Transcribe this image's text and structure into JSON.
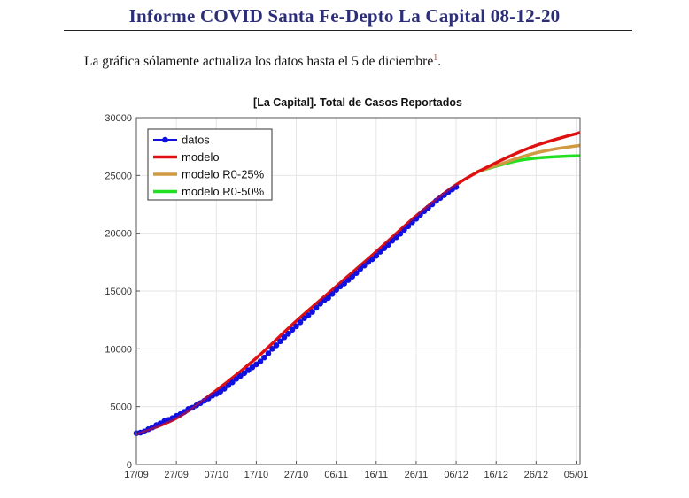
{
  "header": {
    "title": "Informe COVID Santa Fe-Depto La Capital 08-12-20"
  },
  "intro": {
    "text": "La gráfica sólamente actualiza los datos hasta el 5 de diciembre",
    "footnote": "1",
    "end": "."
  },
  "chart_data": {
    "type": "line",
    "title": "[La Capital]. Total de Casos Reportados",
    "xlabel": "",
    "ylabel": "",
    "x_unit": "days since 17/09/2020",
    "xlim": [
      0,
      111
    ],
    "ylim": [
      0,
      30000
    ],
    "grid": true,
    "legend_position": "top-left",
    "xticks": [
      0,
      10,
      20,
      30,
      40,
      50,
      60,
      70,
      80,
      90,
      100,
      110
    ],
    "xtick_labels": [
      "17/09",
      "27/09",
      "07/10",
      "17/10",
      "27/10",
      "06/11",
      "16/11",
      "26/11",
      "06/12",
      "16/12",
      "26/12",
      "05/01"
    ],
    "yticks": [
      0,
      5000,
      10000,
      15000,
      20000,
      25000,
      30000
    ],
    "ytick_labels": [
      "0",
      "5000",
      "10000",
      "15000",
      "20000",
      "25000",
      "30000"
    ],
    "series": [
      {
        "name": "datos",
        "color": "#1010e0",
        "marker": "circle",
        "x_start": 0,
        "values": [
          2700,
          2750,
          2850,
          3050,
          3200,
          3400,
          3550,
          3750,
          3850,
          4000,
          4200,
          4350,
          4550,
          4800,
          4900,
          5100,
          5300,
          5500,
          5700,
          5950,
          6100,
          6300,
          6550,
          6850,
          7100,
          7400,
          7650,
          7900,
          8150,
          8400,
          8650,
          8900,
          9250,
          9600,
          10000,
          10300,
          10650,
          11000,
          11300,
          11650,
          11950,
          12300,
          12650,
          12900,
          13200,
          13550,
          13900,
          14200,
          14400,
          14750,
          15100,
          15400,
          15650,
          15950,
          16250,
          16550,
          16900,
          17200,
          17500,
          17750,
          18050,
          18400,
          18700,
          19000,
          19350,
          19650,
          19950,
          20300,
          20600,
          20950,
          21250,
          21600,
          21900,
          22200,
          22500,
          22800,
          23050,
          23300,
          23550,
          23800,
          24000
        ]
      },
      {
        "name": "modelo",
        "color": "#e01010",
        "x": [
          0,
          10,
          20,
          30,
          40,
          50,
          60,
          70,
          80,
          90,
          100,
          111
        ],
        "values": [
          2600,
          4000,
          6400,
          9200,
          12400,
          15400,
          18400,
          21500,
          24200,
          26100,
          27600,
          28700
        ]
      },
      {
        "name": "modelo R0-25%",
        "color": "#d09a40",
        "x": [
          85,
          90,
          95,
          100,
          105,
          111
        ],
        "values": [
          25300,
          25850,
          26450,
          26950,
          27300,
          27600
        ]
      },
      {
        "name": "modelo R0-50%",
        "color": "#20e020",
        "x": [
          85,
          90,
          95,
          100,
          105,
          111
        ],
        "values": [
          25300,
          25800,
          26250,
          26500,
          26620,
          26700
        ]
      }
    ]
  }
}
